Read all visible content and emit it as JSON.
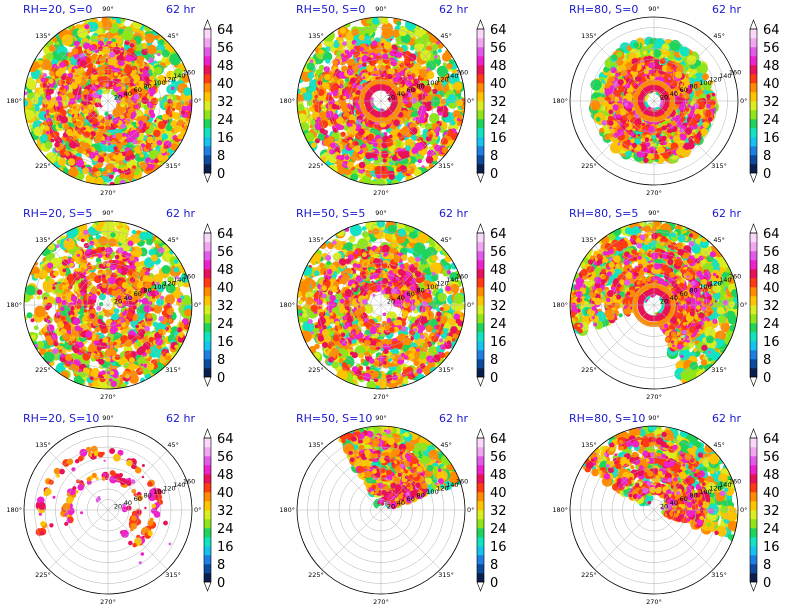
{
  "colors": {
    "title": "#1a1ad0",
    "grid": "#b0b0b0",
    "levels": [
      "#0a1f4d",
      "#0c4a9e",
      "#1f7fe0",
      "#16c3ef",
      "#12e3c2",
      "#1fd45a",
      "#8ee61a",
      "#d8ee20",
      "#ffc400",
      "#ff8c00",
      "#ff3b14",
      "#e8115a",
      "#ee22cc",
      "#e25ae8",
      "#f2a6f2",
      "#fbd8fb"
    ]
  },
  "panels": [
    {
      "id": "p1",
      "title_left": "RH=20, S=0",
      "title_right": "62 hr",
      "density": 0.95,
      "arc": [
        0,
        360
      ],
      "ring": "open",
      "inner": 0.09,
      "rlabels": [
        "20",
        "40",
        "60",
        "80",
        "100",
        "120",
        "140",
        "160"
      ]
    },
    {
      "id": "p2",
      "title_left": "RH=50, S=0",
      "title_right": "62 hr",
      "density": 0.9,
      "arc": [
        0,
        360
      ],
      "ring": "eye",
      "inner": 0.09,
      "rlabels": [
        "20",
        "40",
        "60",
        "80",
        "100",
        "120",
        "140",
        "160"
      ]
    },
    {
      "id": "p3",
      "title_left": "RH=80, S=0",
      "title_right": "62 hr",
      "density": 0.85,
      "arc": [
        0,
        360
      ],
      "ring": "strong",
      "inner": 0.08,
      "outer": 0.72,
      "rlabels": [
        "20",
        "40",
        "60",
        "80",
        "100",
        "120",
        "140",
        "160"
      ]
    },
    {
      "id": "p4",
      "title_left": "RH=20, S=5",
      "title_right": "62 hr",
      "density": 0.7,
      "arc": [
        0,
        360
      ],
      "ring": "spiral",
      "inner": 0.06,
      "rlabels": [
        "20",
        "40",
        "60",
        "80",
        "100",
        "120",
        "140",
        "160"
      ]
    },
    {
      "id": "p5",
      "title_left": "RH=50, S=5",
      "title_right": "62 hr",
      "density": 0.85,
      "arc": [
        0,
        360
      ],
      "ring": "spiral",
      "inner": 0.1,
      "rlabels": [
        "20",
        "40",
        "60",
        "80",
        "100",
        "120",
        "140",
        "160"
      ]
    },
    {
      "id": "p6",
      "title_left": "RH=80, S=5",
      "title_right": "62 hr",
      "density": 0.9,
      "arc": [
        -70,
        200
      ],
      "ring": "strong",
      "inner": 0.09,
      "rlabels": [
        "20",
        "40",
        "60",
        "80",
        "100",
        "120",
        "140",
        "160"
      ]
    },
    {
      "id": "p7",
      "title_left": "RH=20, S=10",
      "title_right": "62 hr",
      "density": 0.3,
      "arc": [
        -60,
        200
      ],
      "ring": "sparse",
      "inner": 0.15,
      "rlabels": [
        "20",
        "40",
        "60",
        "80",
        "100",
        "120",
        "140",
        "160"
      ]
    },
    {
      "id": "p8",
      "title_left": "RH=50, S=10",
      "title_right": "62 hr",
      "density": 0.6,
      "arc": [
        20,
        120
      ],
      "ring": "sector",
      "inner": 0.05,
      "rlabels": [
        "20",
        "40",
        "60",
        "80",
        "100",
        "120",
        "140",
        "160"
      ]
    },
    {
      "id": "p9",
      "title_left": "RH=80, S=10",
      "title_right": "62 hr",
      "density": 0.55,
      "arc": [
        -20,
        150
      ],
      "ring": "sector",
      "inner": 0.08,
      "rlabels": [
        "20",
        "40",
        "60",
        "80",
        "100",
        "120",
        "140",
        "160"
      ]
    }
  ],
  "angle_labels": [
    "90°",
    "45°",
    "0°",
    "315°",
    "270°",
    "225°",
    "180°",
    "135°"
  ],
  "colorbar": {
    "levels": [
      0,
      4,
      8,
      12,
      16,
      20,
      24,
      28,
      32,
      36,
      40,
      44,
      48,
      52,
      56,
      60,
      64,
      68
    ],
    "tick_labels": [
      "0",
      "8",
      "16",
      "24",
      "32",
      "40",
      "48",
      "56",
      "64"
    ]
  },
  "chart_data": {
    "type": "heatmap",
    "grid_rows": 3,
    "grid_cols": 3,
    "row_parameter": "S",
    "col_parameter": "RH",
    "rows": [
      "S=0",
      "S=5",
      "S=10"
    ],
    "cols": [
      "RH=20",
      "RH=50",
      "RH=80"
    ],
    "time": "62 hr",
    "polar_radius_ticks": [
      20,
      40,
      60,
      80,
      100,
      120,
      140,
      160
    ],
    "polar_angle_ticks": [
      "0°",
      "45°",
      "90°",
      "135°",
      "180°",
      "225°",
      "270°",
      "315°"
    ],
    "colorbar_range": [
      0,
      68
    ],
    "colorbar_ticks": [
      0,
      8,
      16,
      24,
      32,
      40,
      48,
      56,
      64
    ]
  }
}
